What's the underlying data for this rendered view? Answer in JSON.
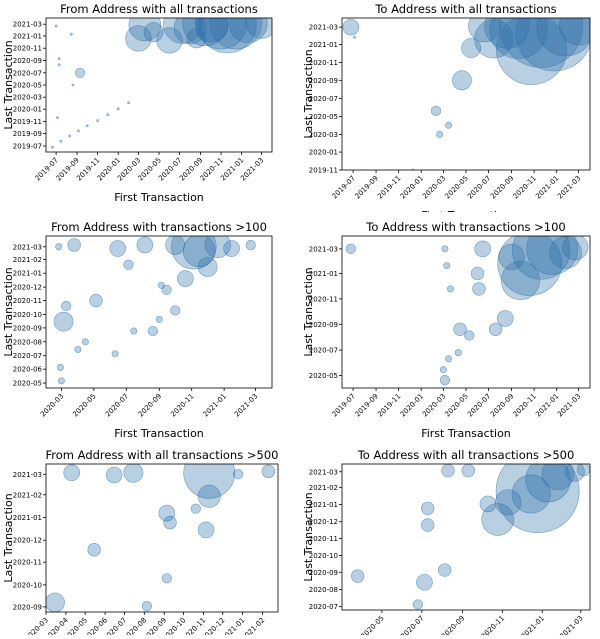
{
  "figure": {
    "colors": {
      "bubble": "#2b6ca8",
      "background": "#ffffff",
      "axes": "#000000"
    }
  },
  "chart_data": [
    {
      "type": "scatter",
      "title": "From Address with all transactions",
      "xlabel": "First Transaction",
      "ylabel": "Last Transaction",
      "xticks": [
        "2019-07",
        "2019-09",
        "2019-11",
        "2020-01",
        "2020-03",
        "2020-05",
        "2020-07",
        "2020-09",
        "2020-11",
        "2021-01",
        "2021-03"
      ],
      "yticks": [
        "2019-07",
        "2019-09",
        "2019-11",
        "2020-01",
        "2020-03",
        "2020-05",
        "2020-07",
        "2020-09",
        "2020-11",
        "2021-01",
        "2021-03"
      ],
      "xlim": [
        "2019-06",
        "2021-04"
      ],
      "ylim": [
        "2019-06",
        "2021-04"
      ],
      "marker_size_encodes": "transaction count",
      "grid": false,
      "points": [
        {
          "x": "2019-06-20",
          "y": "2019-06-25",
          "s": 1
        },
        {
          "x": "2019-07-15",
          "y": "2019-07-25",
          "s": 1
        },
        {
          "x": "2019-08-10",
          "y": "2019-08-20",
          "s": 1
        },
        {
          "x": "2019-09-05",
          "y": "2019-09-15",
          "s": 1
        },
        {
          "x": "2019-10-01",
          "y": "2019-10-10",
          "s": 1
        },
        {
          "x": "2019-11-01",
          "y": "2019-11-05",
          "s": 1
        },
        {
          "x": "2019-12-01",
          "y": "2019-12-05",
          "s": 1
        },
        {
          "x": "2020-01-01",
          "y": "2020-01-03",
          "s": 1
        },
        {
          "x": "2020-02-01",
          "y": "2020-02-03",
          "s": 1
        },
        {
          "x": "2019-07-01",
          "y": "2021-02-20",
          "s": 1
        },
        {
          "x": "2019-08-15",
          "y": "2021-01-10",
          "s": 1
        },
        {
          "x": "2019-07-10",
          "y": "2020-09-10",
          "s": 1
        },
        {
          "x": "2019-07-10",
          "y": "2020-08-10",
          "s": 1
        },
        {
          "x": "2019-08-20",
          "y": "2020-05-01",
          "s": 1
        },
        {
          "x": "2019-07-05",
          "y": "2019-11-20",
          "s": 1
        },
        {
          "x": "2019-09-10",
          "y": "2020-07-01",
          "s": 3
        },
        {
          "x": "2020-03-01",
          "y": "2020-12-20",
          "s": 8
        },
        {
          "x": "2020-03-20",
          "y": "2021-02-25",
          "s": 10
        },
        {
          "x": "2020-04-15",
          "y": "2021-01-20",
          "s": 6
        },
        {
          "x": "2020-06-01",
          "y": "2020-12-10",
          "s": 8
        },
        {
          "x": "2020-07-10",
          "y": "2021-03-01",
          "s": 12
        },
        {
          "x": "2020-08-01",
          "y": "2021-02-10",
          "s": 10
        },
        {
          "x": "2020-08-20",
          "y": "2020-12-20",
          "s": 6
        },
        {
          "x": "2020-09-15",
          "y": "2021-03-05",
          "s": 14
        },
        {
          "x": "2020-10-05",
          "y": "2021-02-20",
          "s": 10
        },
        {
          "x": "2020-11-01",
          "y": "2021-03-05",
          "s": 16
        },
        {
          "x": "2020-11-20",
          "y": "2021-03-01",
          "s": 18
        },
        {
          "x": "2020-12-15",
          "y": "2021-03-05",
          "s": 16
        },
        {
          "x": "2021-01-20",
          "y": "2021-03-05",
          "s": 12
        },
        {
          "x": "2021-03-01",
          "y": "2021-03-10",
          "s": 10
        }
      ]
    },
    {
      "type": "scatter",
      "title": "To Address with all transactions",
      "xlabel": "First Transaction",
      "ylabel": "Last Transaction",
      "xticks": [
        "2019-07",
        "2019-09",
        "2019-11",
        "2020-01",
        "2020-03",
        "2020-05",
        "2020-07",
        "2020-09",
        "2020-11",
        "2021-01",
        "2021-03"
      ],
      "yticks": [
        "2019-11",
        "2020-01",
        "2020-03",
        "2020-05",
        "2020-07",
        "2020-09",
        "2020-11",
        "2021-01",
        "2021-03"
      ],
      "xlim": [
        "2019-06",
        "2021-04"
      ],
      "ylim": [
        "2019-11",
        "2021-04"
      ],
      "marker_size_encodes": "transaction count",
      "grid": false,
      "points": [
        {
          "x": "2019-06-25",
          "y": "2021-03-01",
          "s": 5
        },
        {
          "x": "2019-07-05",
          "y": "2021-01-25",
          "s": 1
        },
        {
          "x": "2019-12-10",
          "y": "2019-11-01",
          "s": 1
        },
        {
          "x": "2020-02-10",
          "y": "2020-05-20",
          "s": 3
        },
        {
          "x": "2020-02-20",
          "y": "2020-03-01",
          "s": 2
        },
        {
          "x": "2020-03-15",
          "y": "2020-04-01",
          "s": 2
        },
        {
          "x": "2020-04-20",
          "y": "2020-09-01",
          "s": 6
        },
        {
          "x": "2020-05-15",
          "y": "2020-12-20",
          "s": 6
        },
        {
          "x": "2020-06-20",
          "y": "2021-03-05",
          "s": 10
        },
        {
          "x": "2020-07-15",
          "y": "2021-01-20",
          "s": 12
        },
        {
          "x": "2020-08-20",
          "y": "2021-03-05",
          "s": 14
        },
        {
          "x": "2020-09-20",
          "y": "2021-02-20",
          "s": 18
        },
        {
          "x": "2020-10-25",
          "y": "2020-12-15",
          "s": 22
        },
        {
          "x": "2020-11-20",
          "y": "2021-03-05",
          "s": 26
        },
        {
          "x": "2020-12-25",
          "y": "2021-02-10",
          "s": 24
        },
        {
          "x": "2021-01-25",
          "y": "2021-03-01",
          "s": 18
        },
        {
          "x": "2021-03-01",
          "y": "2021-03-05",
          "s": 12
        }
      ]
    },
    {
      "type": "scatter",
      "title": "From Address with transactions >100",
      "xlabel": "First Transaction",
      "ylabel": "Last Transaction",
      "xticks": [
        "2020-03",
        "2020-05",
        "2020-07",
        "2020-09",
        "2020-11",
        "2021-01",
        "2021-03"
      ],
      "yticks": [
        "2020-05",
        "2020-06",
        "2020-07",
        "2020-08",
        "2020-09",
        "2020-10",
        "2020-11",
        "2020-12",
        "2021-01",
        "2021-02",
        "2021-03"
      ],
      "xlim": [
        "2020-02",
        "2021-04"
      ],
      "ylim": [
        "2020-04-20",
        "2021-03-25"
      ],
      "marker_size_encodes": "transaction count",
      "grid": false,
      "points": [
        {
          "x": "2020-02-25",
          "y": "2021-03-01",
          "s": 2
        },
        {
          "x": "2020-03-25",
          "y": "2021-03-05",
          "s": 4
        },
        {
          "x": "2020-03-01",
          "y": "2020-05-06",
          "s": 2
        },
        {
          "x": "2020-02-28",
          "y": "2020-06-05",
          "s": 2
        },
        {
          "x": "2020-03-05",
          "y": "2020-09-15",
          "s": 6
        },
        {
          "x": "2020-03-10",
          "y": "2020-10-20",
          "s": 3
        },
        {
          "x": "2020-04-01",
          "y": "2020-07-15",
          "s": 2
        },
        {
          "x": "2020-04-15",
          "y": "2020-08-01",
          "s": 2
        },
        {
          "x": "2020-05-05",
          "y": "2020-11-01",
          "s": 4
        },
        {
          "x": "2020-06-10",
          "y": "2020-07-05",
          "s": 2
        },
        {
          "x": "2020-06-15",
          "y": "2021-02-25",
          "s": 5
        },
        {
          "x": "2020-07-05",
          "y": "2021-01-20",
          "s": 3
        },
        {
          "x": "2020-07-15",
          "y": "2020-08-25",
          "s": 2
        },
        {
          "x": "2020-08-05",
          "y": "2021-03-05",
          "s": 5
        },
        {
          "x": "2020-08-20",
          "y": "2020-08-25",
          "s": 3
        },
        {
          "x": "2020-09-01",
          "y": "2020-09-20",
          "s": 2
        },
        {
          "x": "2020-09-05",
          "y": "2020-12-05",
          "s": 2
        },
        {
          "x": "2020-09-15",
          "y": "2020-11-25",
          "s": 3
        },
        {
          "x": "2020-10-01",
          "y": "2020-10-10",
          "s": 3
        },
        {
          "x": "2020-10-01",
          "y": "2021-03-05",
          "s": 6
        },
        {
          "x": "2020-10-20",
          "y": "2020-12-20",
          "s": 5
        },
        {
          "x": "2020-11-05",
          "y": "2021-03-01",
          "s": 14
        },
        {
          "x": "2020-11-15",
          "y": "2021-02-20",
          "s": 10
        },
        {
          "x": "2020-12-01",
          "y": "2021-01-15",
          "s": 6
        },
        {
          "x": "2020-12-20",
          "y": "2021-03-05",
          "s": 8
        },
        {
          "x": "2021-01-15",
          "y": "2021-02-25",
          "s": 5
        },
        {
          "x": "2021-02-20",
          "y": "2021-03-05",
          "s": 3
        }
      ]
    },
    {
      "type": "scatter",
      "title": "To Address with transactions >100",
      "xlabel": "First Transaction",
      "ylabel": "Last Transaction",
      "xticks": [
        "2019-07",
        "2019-09",
        "2019-11",
        "2020-01",
        "2020-03",
        "2020-05",
        "2020-07",
        "2020-09",
        "2020-11",
        "2021-01",
        "2021-03"
      ],
      "yticks": [
        "2020-05",
        "2020-07",
        "2020-09",
        "2020-11",
        "2021-01",
        "2021-03"
      ],
      "xlim": [
        "2019-06",
        "2021-04"
      ],
      "ylim": [
        "2020-04",
        "2021-04"
      ],
      "marker_size_encodes": "transaction count",
      "grid": false,
      "points": [
        {
          "x": "2019-06-25",
          "y": "2021-03-01",
          "s": 3
        },
        {
          "x": "2020-03-05",
          "y": "2021-03-01",
          "s": 2
        },
        {
          "x": "2020-03-10",
          "y": "2021-01-20",
          "s": 2
        },
        {
          "x": "2020-03-20",
          "y": "2020-11-25",
          "s": 2
        },
        {
          "x": "2020-03-01",
          "y": "2020-05-15",
          "s": 2
        },
        {
          "x": "2020-03-05",
          "y": "2020-04-20",
          "s": 3
        },
        {
          "x": "2020-03-15",
          "y": "2020-06-10",
          "s": 2
        },
        {
          "x": "2020-04-10",
          "y": "2020-06-25",
          "s": 2
        },
        {
          "x": "2020-04-15",
          "y": "2020-08-20",
          "s": 4
        },
        {
          "x": "2020-05-10",
          "y": "2020-08-05",
          "s": 3
        },
        {
          "x": "2020-06-01",
          "y": "2021-01-01",
          "s": 4
        },
        {
          "x": "2020-06-05",
          "y": "2020-11-25",
          "s": 4
        },
        {
          "x": "2020-06-15",
          "y": "2021-03-01",
          "s": 5
        },
        {
          "x": "2020-07-20",
          "y": "2020-08-20",
          "s": 4
        },
        {
          "x": "2020-08-15",
          "y": "2020-09-15",
          "s": 5
        },
        {
          "x": "2020-09-01",
          "y": "2021-02-10",
          "s": 8
        },
        {
          "x": "2020-09-25",
          "y": "2020-12-15",
          "s": 12
        },
        {
          "x": "2020-10-20",
          "y": "2021-01-25",
          "s": 20
        },
        {
          "x": "2020-11-20",
          "y": "2021-02-25",
          "s": 18
        },
        {
          "x": "2020-12-20",
          "y": "2021-03-01",
          "s": 16
        },
        {
          "x": "2021-01-25",
          "y": "2021-02-20",
          "s": 10
        },
        {
          "x": "2021-02-20",
          "y": "2021-03-05",
          "s": 8
        }
      ]
    },
    {
      "type": "scatter",
      "title": "From Address with all transactions >500",
      "xlabel": "",
      "ylabel": "Last Transaction",
      "xticks": [
        "2020-03",
        "2020-04",
        "2020-05",
        "2020-06",
        "2020-07",
        "2020-08",
        "2020-09",
        "2020-10",
        "2020-11",
        "2020-12",
        "2021-01",
        "2021-02"
      ],
      "yticks": [
        "2020-09",
        "2020-10",
        "2020-11",
        "2020-12",
        "2021-01",
        "2021-02",
        "2021-03"
      ],
      "xlim": [
        "2020-03-01",
        "2021-02-25"
      ],
      "ylim": [
        "2020-08-25",
        "2021-03-15"
      ],
      "marker_size_encodes": "transaction count",
      "grid": false,
      "points": [
        {
          "x": "2020-03-15",
          "y": "2020-09-07",
          "s": 6
        },
        {
          "x": "2020-04-10",
          "y": "2021-03-03",
          "s": 5
        },
        {
          "x": "2020-05-15",
          "y": "2020-11-18",
          "s": 4
        },
        {
          "x": "2020-06-15",
          "y": "2021-02-28",
          "s": 5
        },
        {
          "x": "2020-07-15",
          "y": "2021-03-03",
          "s": 6
        },
        {
          "x": "2020-08-05",
          "y": "2020-09-02",
          "s": 3
        },
        {
          "x": "2020-09-05",
          "y": "2020-10-10",
          "s": 3
        },
        {
          "x": "2020-09-05",
          "y": "2021-01-07",
          "s": 5
        },
        {
          "x": "2020-09-10",
          "y": "2020-12-25",
          "s": 4
        },
        {
          "x": "2020-10-20",
          "y": "2021-01-13",
          "s": 3
        },
        {
          "x": "2020-11-05",
          "y": "2020-12-15",
          "s": 5
        },
        {
          "x": "2020-11-10",
          "y": "2021-01-30",
          "s": 7
        },
        {
          "x": "2020-11-10",
          "y": "2021-03-03",
          "s": 16
        },
        {
          "x": "2020-12-25",
          "y": "2021-03-01",
          "s": 3
        },
        {
          "x": "2021-02-10",
          "y": "2021-03-05",
          "s": 4
        }
      ]
    },
    {
      "type": "scatter",
      "title": "To Address with all transactions >500",
      "xlabel": "",
      "ylabel": "Last Transaction",
      "xticks": [
        "2020-05",
        "2020-07",
        "2020-09",
        "2020-11",
        "2021-01",
        "2021-03"
      ],
      "yticks": [
        "2020-07",
        "2020-08",
        "2020-09",
        "2020-10",
        "2020-11",
        "2020-12",
        "2021-01",
        "2021-02",
        "2021-03"
      ],
      "xlim": [
        "2020-03-01",
        "2021-03-15"
      ],
      "ylim": [
        "2020-06-25",
        "2021-03-15"
      ],
      "marker_size_encodes": "transaction count",
      "grid": false,
      "points": [
        {
          "x": "2020-03-25",
          "y": "2020-08-25",
          "s": 4
        },
        {
          "x": "2020-06-25",
          "y": "2020-07-05",
          "s": 3
        },
        {
          "x": "2020-07-05",
          "y": "2020-08-14",
          "s": 5
        },
        {
          "x": "2020-07-10",
          "y": "2020-11-25",
          "s": 4
        },
        {
          "x": "2020-07-10",
          "y": "2020-12-25",
          "s": 4
        },
        {
          "x": "2020-08-05",
          "y": "2020-09-05",
          "s": 4
        },
        {
          "x": "2020-08-10",
          "y": "2021-03-03",
          "s": 4
        },
        {
          "x": "2020-09-10",
          "y": "2021-03-03",
          "s": 4
        },
        {
          "x": "2020-10-10",
          "y": "2021-01-02",
          "s": 5
        },
        {
          "x": "2020-10-25",
          "y": "2020-12-05",
          "s": 10
        },
        {
          "x": "2020-11-10",
          "y": "2021-01-05",
          "s": 8
        },
        {
          "x": "2020-12-15",
          "y": "2021-01-20",
          "s": 12
        },
        {
          "x": "2020-12-25",
          "y": "2021-01-25",
          "s": 26
        },
        {
          "x": "2021-01-10",
          "y": "2021-02-15",
          "s": 14
        },
        {
          "x": "2021-01-25",
          "y": "2021-02-25",
          "s": 10
        },
        {
          "x": "2021-02-20",
          "y": "2021-03-01",
          "s": 6
        },
        {
          "x": "2021-03-05",
          "y": "2021-03-05",
          "s": 4
        }
      ]
    }
  ]
}
